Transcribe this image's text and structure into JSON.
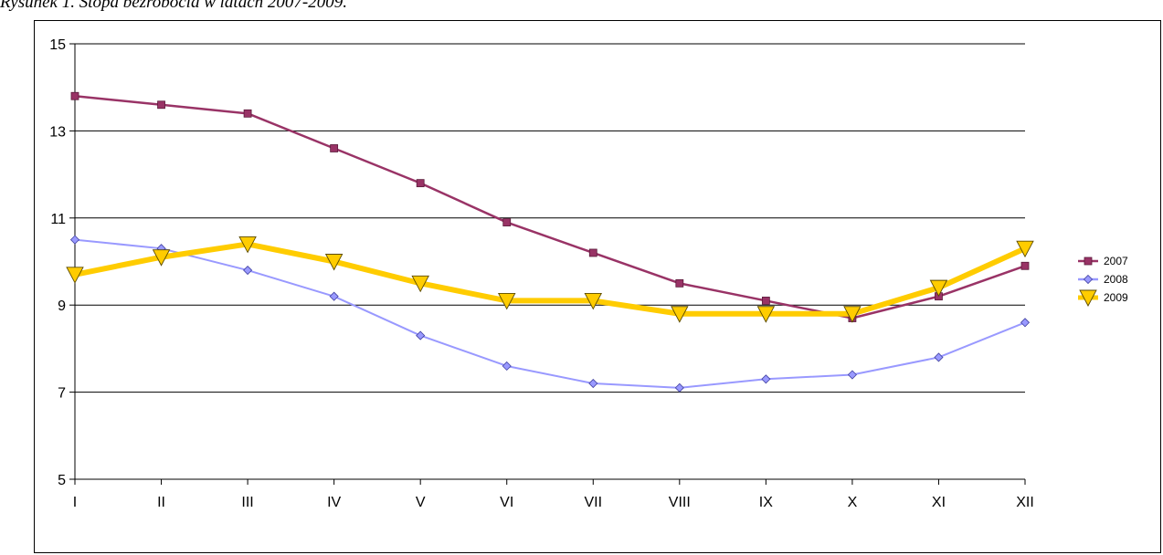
{
  "caption": "Rysunek 1. Stopa bezrobocia w latach 2007-2009.",
  "chart_data": {
    "type": "line",
    "categories": [
      "I",
      "II",
      "III",
      "IV",
      "V",
      "VI",
      "VII",
      "VIII",
      "IX",
      "X",
      "XI",
      "XII"
    ],
    "ylim": [
      5,
      15
    ],
    "yticks": [
      5,
      7,
      9,
      11,
      13,
      15
    ],
    "grid": true,
    "legend_position": "right",
    "series": [
      {
        "name": "2007",
        "color": "#993366",
        "marker": "square",
        "values": [
          13.8,
          13.6,
          13.4,
          12.6,
          11.8,
          10.9,
          10.2,
          9.5,
          9.1,
          8.7,
          9.2,
          9.9
        ]
      },
      {
        "name": "2008",
        "color": "#9999FF",
        "marker": "diamond",
        "values": [
          10.5,
          10.3,
          9.8,
          9.2,
          8.3,
          7.6,
          7.2,
          7.1,
          7.3,
          7.4,
          7.8,
          8.6
        ]
      },
      {
        "name": "2009",
        "color": "#FFCC00",
        "marker": "triangle-down",
        "values": [
          9.7,
          10.1,
          10.4,
          10.0,
          9.5,
          9.1,
          9.1,
          8.8,
          8.8,
          8.8,
          9.4,
          10.3
        ]
      }
    ]
  }
}
